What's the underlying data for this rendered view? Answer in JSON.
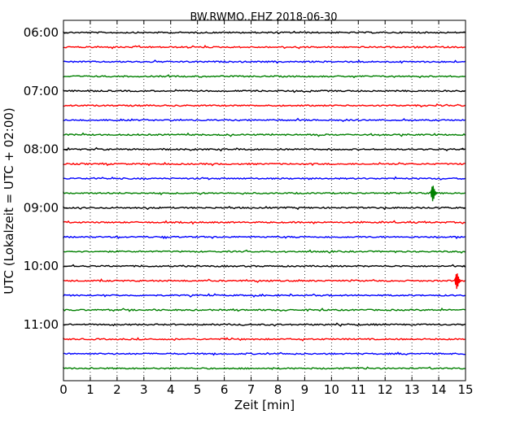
{
  "chart_data": {
    "type": "line",
    "title": "BW.RWMO..EHZ 2018-06-30",
    "xlabel": "Zeit  [min]",
    "ylabel": "UTC (Lokalzeit = UTC + 02:00)",
    "xlim": [
      0,
      15
    ],
    "xticks": [
      "0",
      "1",
      "2",
      "3",
      "4",
      "5",
      "6",
      "7",
      "8",
      "9",
      "10",
      "11",
      "12",
      "13",
      "14",
      "15"
    ],
    "yticks": [
      "06:00",
      "07:00",
      "08:00",
      "09:00",
      "10:00",
      "11:00"
    ],
    "grid": "vertical dotted",
    "trace_colors": [
      "#000000",
      "#ff0000",
      "#0000ff",
      "#008000"
    ],
    "traces": [
      {
        "start": "06:00",
        "color": "#000000"
      },
      {
        "start": "06:15",
        "color": "#ff0000"
      },
      {
        "start": "06:30",
        "color": "#0000ff"
      },
      {
        "start": "06:45",
        "color": "#008000"
      },
      {
        "start": "07:00",
        "color": "#000000"
      },
      {
        "start": "07:15",
        "color": "#ff0000"
      },
      {
        "start": "07:30",
        "color": "#0000ff"
      },
      {
        "start": "07:45",
        "color": "#008000"
      },
      {
        "start": "08:00",
        "color": "#000000"
      },
      {
        "start": "08:15",
        "color": "#ff0000"
      },
      {
        "start": "08:30",
        "color": "#0000ff"
      },
      {
        "start": "08:45",
        "color": "#008000",
        "event_minute": 13.8
      },
      {
        "start": "09:00",
        "color": "#000000"
      },
      {
        "start": "09:15",
        "color": "#ff0000"
      },
      {
        "start": "09:30",
        "color": "#0000ff"
      },
      {
        "start": "09:45",
        "color": "#008000"
      },
      {
        "start": "10:00",
        "color": "#000000"
      },
      {
        "start": "10:15",
        "color": "#ff0000",
        "event_minute": 14.7
      },
      {
        "start": "10:30",
        "color": "#0000ff"
      },
      {
        "start": "10:45",
        "color": "#008000"
      },
      {
        "start": "11:00",
        "color": "#000000"
      },
      {
        "start": "11:15",
        "color": "#ff0000"
      },
      {
        "start": "11:30",
        "color": "#0000ff"
      },
      {
        "start": "11:45",
        "color": "#008000"
      }
    ]
  }
}
